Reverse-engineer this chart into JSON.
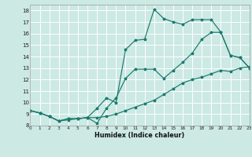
{
  "xlabel": "Humidex (Indice chaleur)",
  "xlim": [
    0,
    23
  ],
  "ylim": [
    8,
    18.5
  ],
  "xticks": [
    0,
    1,
    2,
    3,
    4,
    5,
    6,
    7,
    8,
    9,
    10,
    11,
    12,
    13,
    14,
    15,
    16,
    17,
    18,
    19,
    20,
    21,
    22,
    23
  ],
  "yticks": [
    8,
    9,
    10,
    11,
    12,
    13,
    14,
    15,
    16,
    17,
    18
  ],
  "bg_color": "#cce9e4",
  "line_color": "#1a7a6e",
  "line1_x": [
    0,
    1,
    2,
    3,
    4,
    5,
    6,
    7,
    8,
    9,
    10,
    11,
    12,
    13,
    14,
    15,
    16,
    17,
    18,
    19,
    20,
    21,
    22,
    23
  ],
  "line1_y": [
    9.3,
    9.1,
    8.8,
    8.4,
    8.6,
    8.6,
    8.7,
    9.5,
    10.4,
    10.0,
    14.6,
    15.4,
    15.5,
    18.1,
    17.3,
    17.0,
    16.8,
    17.2,
    17.2,
    17.2,
    16.1,
    14.1,
    13.9,
    13.0
  ],
  "line2_x": [
    0,
    1,
    2,
    3,
    4,
    5,
    6,
    7,
    8,
    9,
    10,
    11,
    12,
    13,
    14,
    15,
    16,
    17,
    18,
    19,
    20,
    21,
    22,
    23
  ],
  "line2_y": [
    9.3,
    9.1,
    8.8,
    8.4,
    8.6,
    8.6,
    8.7,
    8.2,
    9.5,
    10.4,
    12.1,
    12.9,
    12.9,
    12.9,
    12.1,
    12.8,
    13.5,
    14.3,
    15.5,
    16.1,
    16.1,
    14.1,
    13.9,
    13.0
  ],
  "line3_x": [
    0,
    1,
    2,
    3,
    4,
    5,
    6,
    7,
    8,
    9,
    10,
    11,
    12,
    13,
    14,
    15,
    16,
    17,
    18,
    19,
    20,
    21,
    22,
    23
  ],
  "line3_y": [
    9.3,
    9.1,
    8.8,
    8.4,
    8.5,
    8.6,
    8.7,
    8.7,
    8.8,
    9.0,
    9.3,
    9.6,
    9.9,
    10.2,
    10.7,
    11.2,
    11.7,
    12.0,
    12.2,
    12.5,
    12.8,
    12.7,
    13.0,
    13.1
  ]
}
